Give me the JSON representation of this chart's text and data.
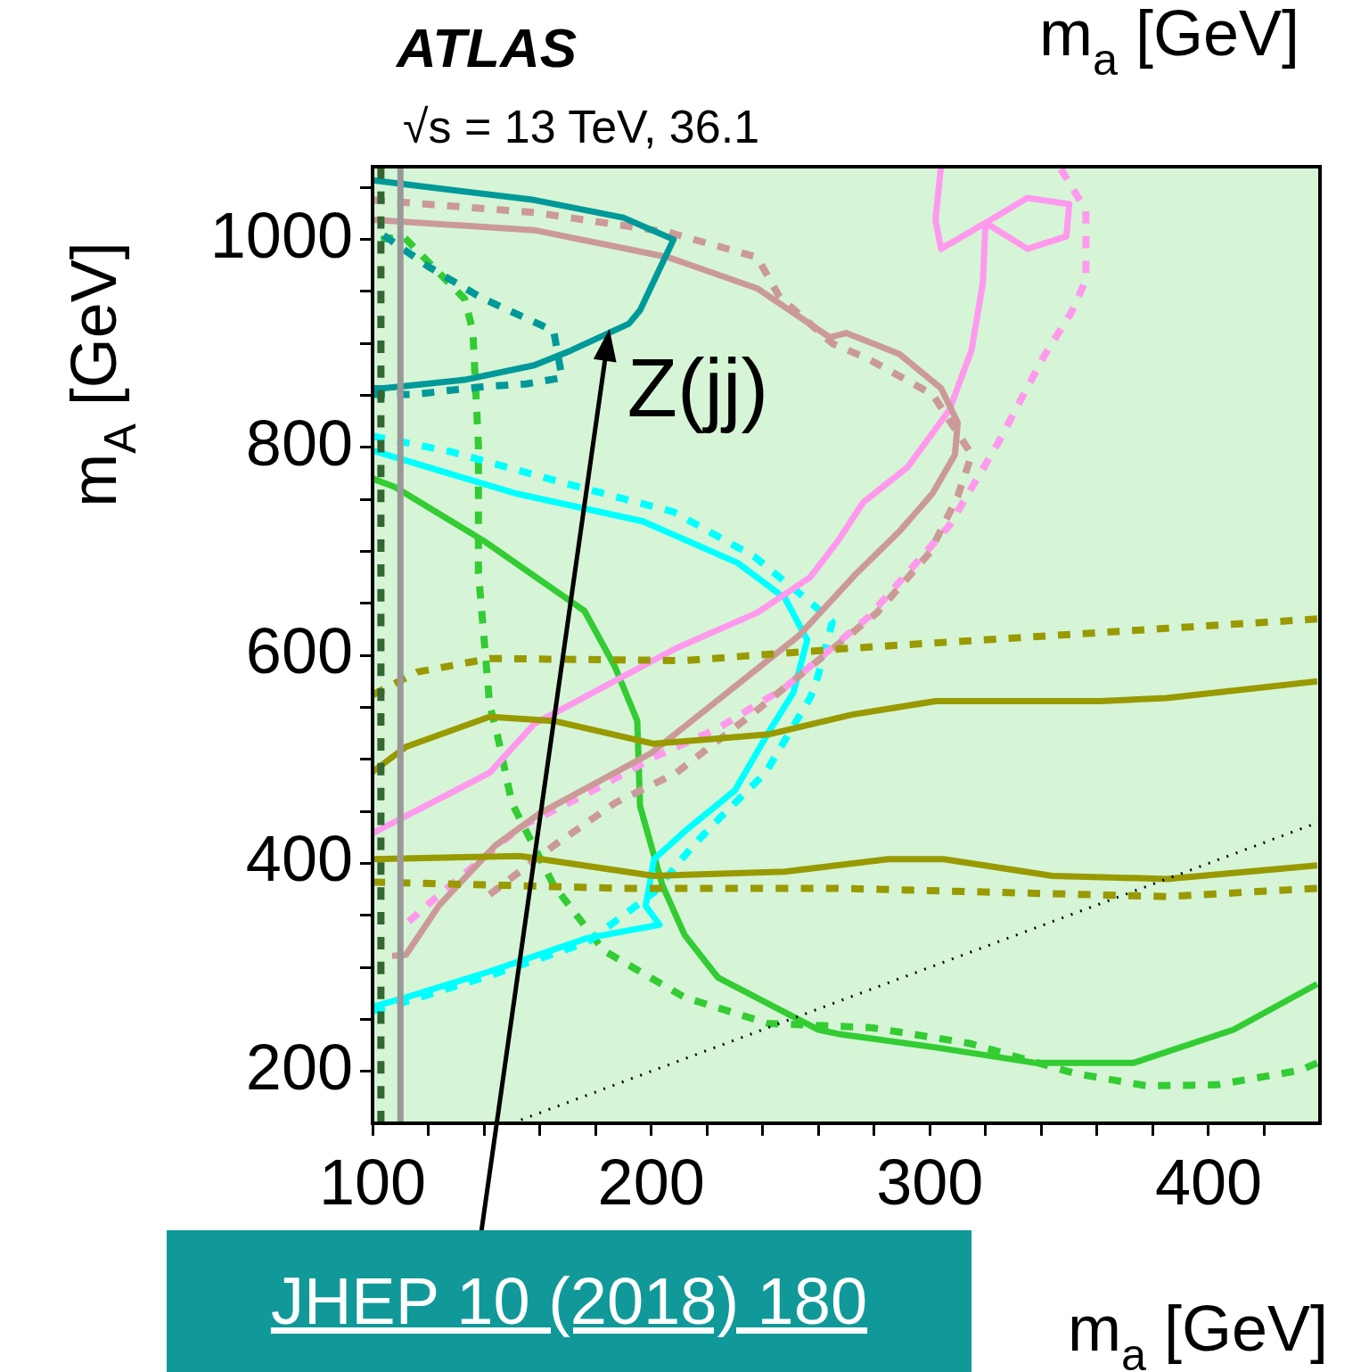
{
  "chart_data": {
    "type": "line",
    "title": "ATLAS",
    "subtitle": "√s = 13 TeV, 36.1",
    "xlabel": "m$_{a}$ [GeV]",
    "x2label": "m$_{a}$ [GeV]",
    "ylabel": "m$_{A}$ [GeV]",
    "xlim": [
      100,
      440
    ],
    "ylim": [
      150,
      1070
    ],
    "xticks": [
      100,
      {
        "value": 120,
        "label": null
      },
      {
        "value": 140,
        "label": null
      },
      {
        "value": 160,
        "label": null
      },
      {
        "value": 180,
        "label": null
      },
      200,
      {
        "value": 220,
        "label": null
      },
      {
        "value": 240,
        "label": null
      },
      {
        "value": 260,
        "label": null
      },
      {
        "value": 280,
        "label": null
      },
      300,
      {
        "value": 320,
        "label": null
      },
      {
        "value": 340,
        "label": null
      },
      {
        "value": 360,
        "label": null
      },
      {
        "value": 380,
        "label": null
      },
      400,
      {
        "value": 420,
        "label": null
      }
    ],
    "yticks": [
      200,
      {
        "value": 250,
        "label": null
      },
      {
        "value": 300,
        "label": null
      },
      {
        "value": 350,
        "label": null
      },
      400,
      {
        "value": 450,
        "label": null
      },
      {
        "value": 500,
        "label": null
      },
      {
        "value": 550,
        "label": null
      },
      600,
      {
        "value": 650,
        "label": null
      },
      {
        "value": 700,
        "label": null
      },
      {
        "value": 750,
        "label": null
      },
      800,
      {
        "value": 850,
        "label": null
      },
      {
        "value": 900,
        "label": null
      },
      {
        "value": 950,
        "label": null
      },
      1000,
      {
        "value": 1050,
        "label": null
      }
    ],
    "legend": false,
    "marker": "none",
    "bands": [
      {
        "axis": "x",
        "from": 100,
        "to": 440,
        "color": "#d6f5d6"
      }
    ],
    "annotations": [
      {
        "text": "Z(jj)",
        "x": 185,
        "y": 914
      },
      "JHEP 10 (2018) 180"
    ],
    "series": [
      {
        "color": "#999999",
        "line_style": "solid",
        "x": [
          110,
          110
        ],
        "values": [
          150,
          1070
        ]
      },
      {
        "color": "#336633",
        "line_style": "dashed",
        "x": [
          103,
          103
        ],
        "values": [
          150,
          1070
        ]
      },
      {
        "color": "#000000",
        "line_style": "dotted",
        "x": [
          150,
          440
        ],
        "values": [
          150,
          440
        ]
      },
      {
        "color": "#999900",
        "line_style": "solid",
        "x": [
          100,
          112,
          142,
          165,
          201,
          242,
          272,
          302,
          361,
          385,
          439
        ],
        "values": [
          488,
          512,
          541,
          537,
          515,
          524,
          543,
          556,
          556,
          559,
          575
        ]
      },
      {
        "color": "#999900",
        "line_style": "solid",
        "x": [
          100,
          153,
          201,
          248,
          285,
          305,
          344,
          385,
          439
        ],
        "values": [
          404,
          407,
          388,
          392,
          404,
          404,
          388,
          385,
          398
        ]
      },
      {
        "color": "#999900",
        "line_style": "dashed",
        "x": [
          100,
          116,
          142,
          212,
          272,
          326,
          385,
          439
        ],
        "values": [
          562,
          584,
          597,
          595,
          607,
          616,
          626,
          635
        ]
      },
      {
        "color": "#999900",
        "line_style": "dashed",
        "x": [
          100,
          189,
          267,
          326,
          385,
          439
        ],
        "values": [
          382,
          376,
          376,
          372,
          368,
          376
        ]
      },
      {
        "color": "#009999",
        "line_style": "solid",
        "x": [
          100,
          158,
          190,
          208,
          196,
          192,
          171,
          158,
          133,
          104,
          100
        ],
        "values": [
          1057,
          1038,
          1021,
          1000,
          932,
          919,
          893,
          879,
          865,
          857,
          857
        ]
      },
      {
        "color": "#009999",
        "line_style": "dashed",
        "x": [
          104,
          120,
          139,
          165,
          168,
          155,
          142,
          128,
          115,
          100
        ],
        "values": [
          1004,
          974,
          944,
          912,
          867,
          861,
          859,
          855,
          851,
          851
        ]
      },
      {
        "color": "#cc9999",
        "line_style": "solid",
        "x": [
          100,
          158,
          206,
          238,
          264,
          270,
          289,
          304,
          310,
          309,
          301,
          289,
          273,
          253,
          200,
          160,
          144,
          124,
          112,
          107
        ],
        "values": [
          1019,
          1009,
          983,
          953,
          906,
          910,
          890,
          857,
          824,
          793,
          756,
          719,
          677,
          619,
          506,
          448,
          417,
          360,
          312,
          311
        ]
      },
      {
        "color": "#cc9999",
        "line_style": "dashed",
        "x": [
          100,
          158,
          206,
          238,
          246,
          265,
          278,
          301,
          315,
          310,
          300,
          281,
          236,
          209,
          187,
          165,
          142
        ],
        "values": [
          1038,
          1026,
          1007,
          983,
          945,
          900,
          885,
          851,
          793,
          753,
          699,
          641,
          543,
          487,
          458,
          417,
          370
        ]
      },
      {
        "color": "#ff99ee",
        "line_style": "solid",
        "x": [
          100,
          142,
          158,
          209,
          238,
          257,
          267,
          276,
          292,
          307,
          315,
          319,
          320,
          335,
          350,
          349,
          335,
          320,
          304,
          302,
          304
        ],
        "values": [
          429,
          487,
          534,
          607,
          641,
          675,
          710,
          747,
          781,
          836,
          894,
          958,
          1016,
          1040,
          1034,
          1003,
          991,
          1016,
          991,
          1019,
          1070
        ]
      },
      {
        "color": "#ff99ee",
        "line_style": "dashed",
        "x": [
          113,
          121,
          153,
          177,
          201,
          224,
          248,
          262,
          278,
          307,
          324,
          341,
          351,
          356,
          356,
          356,
          349,
          347
        ],
        "values": [
          344,
          363,
          435,
          467,
          502,
          530,
          569,
          601,
          637,
          725,
          802,
          888,
          931,
          961,
          997,
          1028,
          1059,
          1068
        ]
      },
      {
        "color": "#00ffff",
        "line_style": "solid",
        "x": [
          100,
          151,
          197,
          231,
          248,
          256,
          251,
          243,
          230,
          213,
          201,
          198,
          203,
          177,
          142,
          112,
          100
        ],
        "values": [
          797,
          756,
          729,
          689,
          655,
          615,
          564,
          530,
          470,
          433,
          404,
          359,
          341,
          328,
          296,
          271,
          262
        ]
      },
      {
        "color": "#00ffff",
        "line_style": "dashed",
        "x": [
          100,
          128,
          174,
          208,
          237,
          258,
          265,
          259,
          257,
          241,
          224,
          215,
          201,
          177,
          142,
          112,
          100
        ],
        "values": [
          811,
          796,
          762,
          738,
          695,
          649,
          632,
          572,
          559,
          487,
          442,
          417,
          372,
          324,
          292,
          267,
          258
        ]
      },
      {
        "color": "#33cc33",
        "line_style": "solid",
        "x": [
          100,
          108,
          140,
          176,
          187,
          195,
          196,
          204,
          212,
          224,
          260,
          267,
          302,
          338,
          373,
          409,
          439
        ],
        "values": [
          770,
          762,
          710,
          643,
          589,
          537,
          455,
          379,
          331,
          290,
          240,
          236,
          223,
          208,
          208,
          240,
          284
        ]
      },
      {
        "color": "#33cc33",
        "line_style": "dashed",
        "x": [
          103,
          111,
          133,
          136,
          138,
          138,
          142,
          145,
          150,
          165,
          183,
          212,
          242,
          279,
          314,
          352,
          378,
          403,
          433,
          439
        ],
        "values": [
          1000,
          1003,
          943,
          912,
          802,
          680,
          553,
          521,
          458,
          379,
          316,
          271,
          246,
          242,
          227,
          198,
          186,
          187,
          201,
          208
        ]
      }
    ]
  }
}
